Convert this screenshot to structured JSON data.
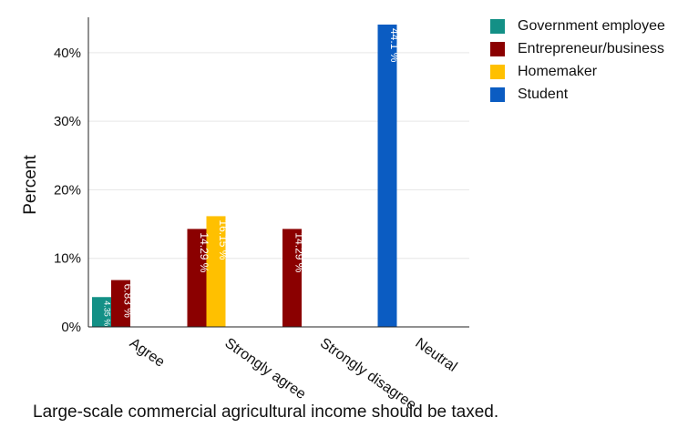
{
  "chart_data": {
    "type": "bar",
    "title": "",
    "xlabel": "Large-scale commercial agricultural income should be taxed.",
    "ylabel": "Percent",
    "ylim": [
      0,
      44.1
    ],
    "yticks": [
      0,
      10,
      20,
      30,
      40
    ],
    "ytick_labels": [
      "0%",
      "10%",
      "20%",
      "30%",
      "40%"
    ],
    "categories": [
      "Agree",
      "Strongly agree",
      "Strongly disagree",
      "Neutral"
    ],
    "grid": "horizontal",
    "legend_position": "top-right",
    "series": [
      {
        "name": "Government employee",
        "color": "#139086",
        "values": [
          4.35,
          null,
          null,
          null
        ],
        "labels": [
          "4.35 %",
          null,
          null,
          null
        ]
      },
      {
        "name": "Entrepreneur/business",
        "color": "#8b0000",
        "values": [
          6.83,
          14.29,
          14.29,
          null
        ],
        "labels": [
          "6.83 %",
          "14.29 %",
          "14.29 %",
          null
        ]
      },
      {
        "name": "Homemaker",
        "color": "#ffc000",
        "values": [
          null,
          16.15,
          null,
          null
        ],
        "labels": [
          null,
          "16.15 %",
          null,
          null
        ]
      },
      {
        "name": "Student",
        "color": "#0b5cc2",
        "values": [
          null,
          null,
          null,
          44.1
        ],
        "labels": [
          null,
          null,
          null,
          "44.1 %"
        ]
      }
    ]
  }
}
